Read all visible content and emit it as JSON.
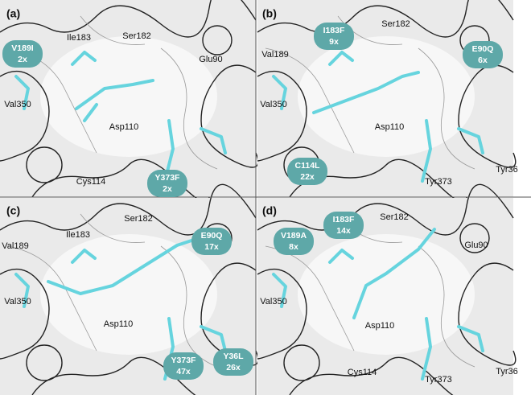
{
  "panels": [
    {
      "label": "(a)",
      "residues": [
        "Ile183",
        "Ser182",
        "Glu90",
        "Val350",
        "Asp110",
        "Cys114"
      ],
      "mutations": [
        {
          "name": "V189I",
          "fold": "2x"
        },
        {
          "name": "Y373F",
          "fold": "2x"
        }
      ]
    },
    {
      "label": "(b)",
      "residues": [
        "Ser182",
        "Val189",
        "Val350",
        "Asp110",
        "Tyr373",
        "Tyr36"
      ],
      "mutations": [
        {
          "name": "I183F",
          "fold": "9x"
        },
        {
          "name": "E90Q",
          "fold": "6x"
        },
        {
          "name": "C114L",
          "fold": "22x"
        }
      ]
    },
    {
      "label": "(c)",
      "residues": [
        "Ser182",
        "Ile183",
        "Val189",
        "Val350",
        "Asp110"
      ],
      "mutations": [
        {
          "name": "E90Q",
          "fold": "17x"
        },
        {
          "name": "Y373F",
          "fold": "47x"
        },
        {
          "name": "Y36L",
          "fold": "26x"
        }
      ]
    },
    {
      "label": "(d)",
      "residues": [
        "Ser182",
        "Glu90",
        "Val350",
        "Asp110",
        "Cys114",
        "Tyr373",
        "Tyr36"
      ],
      "mutations": [
        {
          "name": "V189A",
          "fold": "8x"
        },
        {
          "name": "I183F",
          "fold": "14x"
        }
      ]
    }
  ]
}
